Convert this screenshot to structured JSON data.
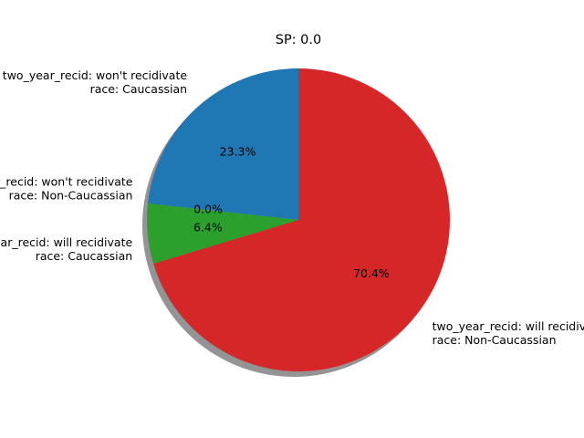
{
  "chart_data": {
    "type": "pie",
    "title": "SP: 0.0",
    "shadow": true,
    "start_angle_deg": 90,
    "direction": "counterclockwise",
    "slices": [
      {
        "label_lines": [
          "two_year_recid: won't recidivate",
          "race: Caucassian"
        ],
        "value": 23.3,
        "pct_label": "23.3%",
        "color": "#1f77b4"
      },
      {
        "label_lines": [
          "two_year_recid: won't recidivate",
          "race: Non-Caucassian"
        ],
        "value": 0.0,
        "pct_label": "0.0%",
        "color": "#ff7f0e"
      },
      {
        "label_lines": [
          "two_year_recid: will recidivate",
          "race: Caucassian"
        ],
        "value": 6.4,
        "pct_label": "6.4%",
        "color": "#2ca02c"
      },
      {
        "label_lines": [
          "two_year_recid: will recidivate",
          "race: Non-Caucassian"
        ],
        "value": 70.4,
        "pct_label": "70.4%",
        "color": "#d62728"
      }
    ]
  }
}
